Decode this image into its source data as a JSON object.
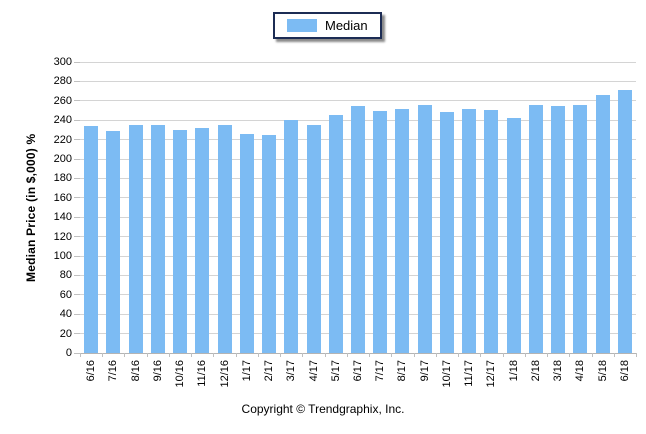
{
  "legend": {
    "label": "Median",
    "swatch_color": "#7CBBF3",
    "border_color": "#1c2c54"
  },
  "footer": {
    "copyright": "Copyright © Trendgraphix, Inc."
  },
  "chart_data": {
    "type": "bar",
    "title": "",
    "xlabel": "",
    "ylabel": "Median Price (in $,000) %",
    "ylim": [
      0,
      300
    ],
    "ytick_step": 20,
    "yticks": [
      0,
      20,
      40,
      60,
      80,
      100,
      120,
      140,
      160,
      180,
      200,
      220,
      240,
      260,
      280,
      300
    ],
    "grid": true,
    "legend_position": "top-center",
    "bar_color": "#7CBBF3",
    "gridline_color": "#d4d4d4",
    "categories": [
      "6/16",
      "7/16",
      "8/16",
      "9/16",
      "10/16",
      "11/16",
      "12/16",
      "1/17",
      "2/17",
      "3/17",
      "4/17",
      "5/17",
      "6/17",
      "7/17",
      "8/17",
      "9/17",
      "10/17",
      "11/17",
      "12/17",
      "1/18",
      "2/18",
      "3/18",
      "4/18",
      "5/18",
      "6/18"
    ],
    "series": [
      {
        "name": "Median",
        "values": [
          234,
          229,
          235,
          235,
          230,
          232,
          235,
          226,
          225,
          240,
          235,
          245,
          255,
          250,
          252,
          256,
          248,
          252,
          251,
          242,
          256,
          255,
          256,
          266,
          271
        ]
      }
    ]
  }
}
